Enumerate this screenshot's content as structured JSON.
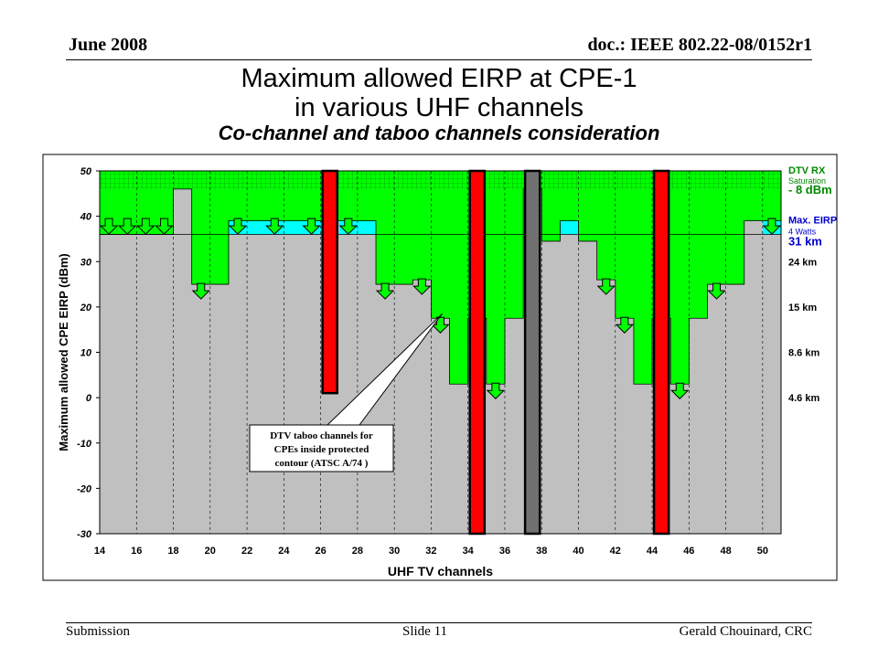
{
  "header": {
    "date": "June 2008",
    "doc": "doc.: IEEE 802.22-08/0152r1"
  },
  "title_line1": "Maximum allowed EIRP at CPE-1",
  "title_line2": "in various UHF channels",
  "subtitle": "Co-channel and taboo channels consideration",
  "footer": {
    "left": "Submission",
    "center": "Slide 11",
    "right": "Gerald Chouinard, CRC"
  },
  "colors": {
    "green": "#00ff00",
    "cyan": "#00ffff",
    "red": "#ff0000",
    "gray_bar": "#707070",
    "plot_bg": "#c0c0c0",
    "arrow": "#3399ff"
  },
  "chart_data": {
    "type": "bar",
    "xlabel": "UHF TV channels",
    "ylabel": "Maximum allowed CPE EIRP (dBm)",
    "xlim": [
      14,
      51
    ],
    "ylim": [
      -30,
      50
    ],
    "x_ticks": [
      "14",
      "16",
      "18",
      "20",
      "22",
      "24",
      "26",
      "28",
      "30",
      "32",
      "34",
      "36",
      "38",
      "40",
      "42",
      "44",
      "46",
      "48",
      "50"
    ],
    "y_ticks": [
      "50",
      "40",
      "30",
      "20",
      "10",
      "0",
      "-10",
      "-20",
      "-30"
    ],
    "reference_levels": [
      {
        "value": 46,
        "label_lines": [
          "DTV RX",
          "Saturation",
          "- 8 dBm"
        ]
      },
      {
        "value": 36,
        "label_lines": [
          "Max. EIRP",
          "4 Watts",
          "31 km"
        ]
      },
      {
        "value": 30,
        "label_lines": [
          "24 km"
        ]
      },
      {
        "value": 20,
        "label_lines": [
          "15 km"
        ]
      },
      {
        "value": 10,
        "label_lines": [
          "8.6 km"
        ]
      },
      {
        "value": 0,
        "label_lines": [
          "4.6 km"
        ]
      }
    ],
    "saturation_band": [
      46,
      50
    ],
    "channel_eirp": [
      {
        "channel": 14,
        "value": 46
      },
      {
        "channel": 15,
        "value": 46
      },
      {
        "channel": 16,
        "value": 46
      },
      {
        "channel": 17,
        "value": 46
      },
      {
        "channel": 18,
        "value": 46
      },
      {
        "channel": 19,
        "value": 25
      },
      {
        "channel": 20,
        "value": 25
      },
      {
        "channel": 21,
        "value": 39
      },
      {
        "channel": 22,
        "value": 39
      },
      {
        "channel": 23,
        "value": 39
      },
      {
        "channel": 24,
        "value": 39
      },
      {
        "channel": 25,
        "value": 39
      },
      {
        "channel": 26,
        "value": 39
      },
      {
        "channel": 27,
        "value": 39
      },
      {
        "channel": 28,
        "value": 39
      },
      {
        "channel": 29,
        "value": 25
      },
      {
        "channel": 30,
        "value": 25
      },
      {
        "channel": 31,
        "value": 26
      },
      {
        "channel": 32,
        "value": 17.5
      },
      {
        "channel": 33,
        "value": 3
      },
      {
        "channel": 34,
        "value": 17.5
      },
      {
        "channel": 35,
        "value": 3
      },
      {
        "channel": 36,
        "value": 17.5
      },
      {
        "channel": 37,
        "value": 46
      },
      {
        "channel": 38,
        "value": 34.5
      },
      {
        "channel": 39,
        "value": 39
      },
      {
        "channel": 40,
        "value": 34.5
      },
      {
        "channel": 41,
        "value": 26
      },
      {
        "channel": 42,
        "value": 17.5
      },
      {
        "channel": 43,
        "value": 3
      },
      {
        "channel": 44,
        "value": 17.5
      },
      {
        "channel": 45,
        "value": 3
      },
      {
        "channel": 46,
        "value": 17.5
      },
      {
        "channel": 47,
        "value": 25
      },
      {
        "channel": 48,
        "value": 25
      },
      {
        "channel": 49,
        "value": 39
      },
      {
        "channel": 50,
        "value": 39
      }
    ],
    "cyan_extension_channels": [
      14,
      15,
      16,
      17,
      21,
      22,
      23,
      24,
      25,
      27,
      28,
      39,
      50
    ],
    "red_bars": [
      {
        "channel": 26,
        "bottom": 1,
        "top": 50
      },
      {
        "channel": 34,
        "bottom": -30,
        "top": 50
      },
      {
        "channel": 44,
        "bottom": -30,
        "top": 50
      }
    ],
    "gray_bars": [
      {
        "channel": 37,
        "bottom": -30,
        "top": 50
      }
    ],
    "annotation": {
      "lines": [
        "DTV taboo channels for",
        "CPEs inside protected",
        "contour (ATSC A/74 )"
      ]
    }
  }
}
